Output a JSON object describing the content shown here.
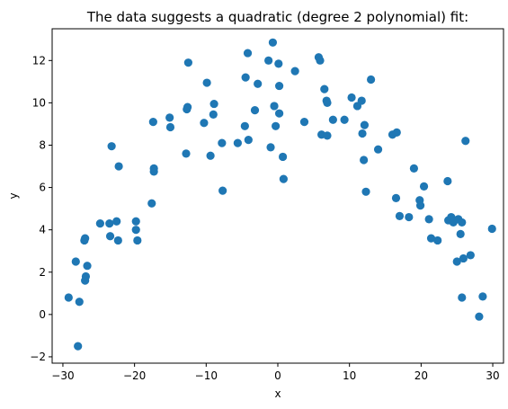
{
  "chart_data": {
    "type": "scatter",
    "title": "The data suggests a quadratic (degree 2 polynomial) fit:",
    "xlabel": "x",
    "ylabel": "y",
    "xlim": [
      -31.5,
      31.5
    ],
    "ylim": [
      -2.3,
      13.5
    ],
    "xticks": [
      -30,
      -20,
      -10,
      0,
      10,
      20,
      30
    ],
    "yticks": [
      -2,
      0,
      2,
      4,
      6,
      8,
      10,
      12
    ],
    "grid": false,
    "marker_color": "#1f77b4",
    "series": [
      {
        "points": [
          [
            -29.2,
            0.8
          ],
          [
            -28.2,
            2.5
          ],
          [
            -27.9,
            -1.5
          ],
          [
            -27.7,
            0.6
          ],
          [
            -27.0,
            3.5
          ],
          [
            -26.9,
            3.6
          ],
          [
            -26.9,
            1.6
          ],
          [
            -26.8,
            1.8
          ],
          [
            -26.6,
            2.3
          ],
          [
            -24.8,
            4.3
          ],
          [
            -23.5,
            4.3
          ],
          [
            -23.4,
            3.7
          ],
          [
            -23.2,
            7.95
          ],
          [
            -22.5,
            4.4
          ],
          [
            -22.3,
            3.5
          ],
          [
            -22.2,
            7.0
          ],
          [
            -19.8,
            4.4
          ],
          [
            -19.8,
            4.0
          ],
          [
            -19.6,
            3.5
          ],
          [
            -17.6,
            5.25
          ],
          [
            -17.4,
            9.1
          ],
          [
            -17.3,
            6.9
          ],
          [
            -17.3,
            6.75
          ],
          [
            -15.1,
            9.3
          ],
          [
            -15.0,
            8.85
          ],
          [
            -12.8,
            7.6
          ],
          [
            -12.7,
            9.7
          ],
          [
            -12.6,
            9.8
          ],
          [
            -12.5,
            11.9
          ],
          [
            -10.3,
            9.05
          ],
          [
            -9.9,
            10.95
          ],
          [
            -9.4,
            7.5
          ],
          [
            -9.0,
            9.45
          ],
          [
            -8.9,
            9.95
          ],
          [
            -7.8,
            8.1
          ],
          [
            -7.7,
            5.85
          ],
          [
            -5.6,
            8.1
          ],
          [
            -4.6,
            8.9
          ],
          [
            -4.5,
            11.2
          ],
          [
            -4.2,
            12.35
          ],
          [
            -4.1,
            8.25
          ],
          [
            -3.2,
            9.65
          ],
          [
            -2.8,
            10.9
          ],
          [
            -1.3,
            12.0
          ],
          [
            -1.0,
            7.9
          ],
          [
            -0.7,
            12.85
          ],
          [
            -0.5,
            9.85
          ],
          [
            -0.3,
            8.9
          ],
          [
            0.1,
            11.85
          ],
          [
            0.2,
            10.8
          ],
          [
            0.2,
            9.5
          ],
          [
            0.7,
            7.45
          ],
          [
            0.8,
            6.4
          ],
          [
            2.4,
            11.5
          ],
          [
            3.7,
            9.1
          ],
          [
            5.7,
            12.15
          ],
          [
            5.9,
            12.0
          ],
          [
            6.1,
            8.5
          ],
          [
            6.5,
            10.65
          ],
          [
            6.8,
            10.1
          ],
          [
            6.9,
            10.0
          ],
          [
            6.9,
            8.45
          ],
          [
            7.7,
            9.2
          ],
          [
            9.3,
            9.2
          ],
          [
            10.3,
            10.25
          ],
          [
            11.1,
            9.85
          ],
          [
            11.7,
            10.1
          ],
          [
            11.8,
            8.55
          ],
          [
            12.0,
            7.3
          ],
          [
            12.1,
            8.95
          ],
          [
            12.3,
            5.8
          ],
          [
            13.0,
            11.1
          ],
          [
            14.0,
            7.8
          ],
          [
            16.0,
            8.5
          ],
          [
            16.5,
            5.5
          ],
          [
            16.6,
            8.6
          ],
          [
            17.0,
            4.65
          ],
          [
            18.3,
            4.6
          ],
          [
            19.0,
            6.9
          ],
          [
            19.8,
            5.4
          ],
          [
            19.9,
            5.15
          ],
          [
            20.4,
            6.05
          ],
          [
            21.1,
            4.5
          ],
          [
            21.4,
            3.6
          ],
          [
            22.3,
            3.5
          ],
          [
            23.7,
            6.3
          ],
          [
            23.8,
            4.45
          ],
          [
            24.2,
            4.6
          ],
          [
            24.4,
            4.5
          ],
          [
            24.5,
            4.35
          ],
          [
            25.0,
            2.5
          ],
          [
            25.2,
            4.5
          ],
          [
            25.5,
            3.8
          ],
          [
            25.7,
            0.8
          ],
          [
            25.7,
            4.35
          ],
          [
            25.9,
            2.65
          ],
          [
            26.2,
            8.2
          ],
          [
            26.9,
            2.8
          ],
          [
            28.1,
            -0.1
          ],
          [
            28.6,
            0.85
          ],
          [
            29.9,
            4.05
          ]
        ]
      }
    ]
  }
}
